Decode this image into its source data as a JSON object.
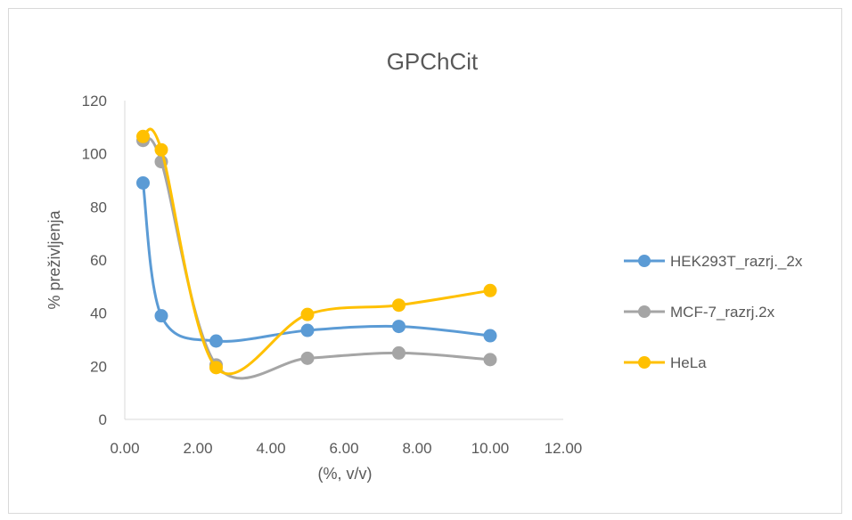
{
  "chart_data": {
    "type": "scatter",
    "title": "GPChCit",
    "xlabel": "(%, v/v)",
    "ylabel": "% preživljenja",
    "xlim": [
      0,
      12
    ],
    "ylim": [
      0,
      120
    ],
    "x_ticks": [
      "0.00",
      "2.00",
      "4.00",
      "6.00",
      "8.00",
      "10.00",
      "12.00"
    ],
    "y_ticks": [
      "0",
      "20",
      "40",
      "60",
      "80",
      "100",
      "120"
    ],
    "grid": false,
    "smooth_lines": true,
    "legend_position": "right",
    "series": [
      {
        "name": "HEK293T_razrj._2x",
        "color": "#5b9bd5",
        "points": [
          [
            0.5,
            89
          ],
          [
            1.0,
            39
          ],
          [
            2.5,
            29.5
          ],
          [
            5.0,
            33.5
          ],
          [
            7.5,
            35
          ],
          [
            10.0,
            31.5
          ]
        ]
      },
      {
        "name": "MCF-7_razrj.2x",
        "color": "#a5a5a5",
        "points": [
          [
            0.5,
            105
          ],
          [
            1.0,
            97
          ],
          [
            2.5,
            20.5
          ],
          [
            5.0,
            23
          ],
          [
            7.5,
            25
          ],
          [
            10.0,
            22.5
          ]
        ]
      },
      {
        "name": "HeLa",
        "color": "#ffc000",
        "points": [
          [
            0.5,
            106.5
          ],
          [
            1.0,
            101.5
          ],
          [
            2.5,
            19.5
          ],
          [
            5.0,
            39.5
          ],
          [
            7.5,
            43
          ],
          [
            10.0,
            48.5
          ]
        ]
      }
    ]
  }
}
